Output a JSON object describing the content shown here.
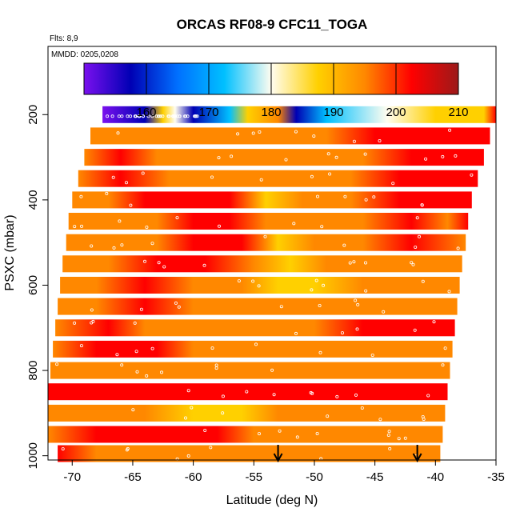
{
  "chart_data": {
    "type": "heatmap",
    "title": "ORCAS RF08-9 CFC11_TOGA",
    "flights_label": "Flts: 8,9",
    "dates_label": "MMDD: 0205,0208",
    "xlabel": "Latitude (deg N)",
    "ylabel": "PSXC (mbar)",
    "xlim": [
      -72,
      -35
    ],
    "ylim": [
      1010,
      40
    ],
    "x_ticks": [
      -70,
      -65,
      -60,
      -55,
      -50,
      -45,
      -40,
      -35
    ],
    "y_ticks": [
      200,
      400,
      600,
      800,
      1000
    ],
    "grid": false,
    "colorbar": {
      "position": "top-inset",
      "range": [
        150,
        210
      ],
      "ticks": [
        160,
        170,
        180,
        190,
        200,
        210
      ],
      "colors": [
        "#7a10ee",
        "#0000b4",
        "#0070ff",
        "#00c0ff",
        "#fffdf0",
        "#ffd000",
        "#ff8800",
        "#ff0000",
        "#9c1a1a"
      ]
    },
    "arrows_latitude": [
      -53,
      -41.5
    ],
    "rows": [
      {
        "p": 200,
        "lat_min": -67.5,
        "lat_max": -35,
        "stops": [
          [
            -67.5,
            153
          ],
          [
            -64,
            156
          ],
          [
            -62.5,
            184
          ],
          [
            -61.5,
            178
          ],
          [
            -60,
            154
          ],
          [
            -57,
            172
          ],
          [
            -55.5,
            187
          ],
          [
            -53,
            192
          ],
          [
            -51.5,
            157
          ],
          [
            -49,
            176
          ],
          [
            -44,
            181
          ],
          [
            -40,
            185
          ],
          [
            -37.3,
            188
          ],
          [
            -36,
            184
          ],
          [
            -35,
            204
          ]
        ]
      },
      {
        "p": 250,
        "lat_min": -68.5,
        "lat_max": -35.5,
        "stops": [
          [
            -68.5,
            198
          ],
          [
            -63,
            195
          ],
          [
            -59,
            196
          ],
          [
            -56,
            194
          ],
          [
            -53,
            193
          ],
          [
            -49,
            197
          ],
          [
            -45,
            201
          ],
          [
            -41,
            206
          ],
          [
            -38,
            204
          ],
          [
            -35.5,
            202
          ]
        ]
      },
      {
        "p": 300,
        "lat_min": -69,
        "lat_max": -36,
        "stops": [
          [
            -69,
            196
          ],
          [
            -66,
            199
          ],
          [
            -63,
            194
          ],
          [
            -60,
            198
          ],
          [
            -56,
            196
          ],
          [
            -53,
            193
          ],
          [
            -49,
            192
          ],
          [
            -46,
            197
          ],
          [
            -42,
            203
          ],
          [
            -39,
            200
          ],
          [
            -36,
            201
          ]
        ]
      },
      {
        "p": 350,
        "lat_min": -69.5,
        "lat_max": -36.5,
        "stops": [
          [
            -69.5,
            194
          ],
          [
            -66,
            199
          ],
          [
            -62,
            198
          ],
          [
            -58,
            196
          ],
          [
            -55,
            195
          ],
          [
            -51,
            193
          ],
          [
            -47,
            196
          ],
          [
            -43,
            201
          ],
          [
            -40,
            203
          ],
          [
            -36.5,
            199
          ]
        ]
      },
      {
        "p": 400,
        "lat_min": -70,
        "lat_max": -37,
        "stops": [
          [
            -70,
            193
          ],
          [
            -67,
            197
          ],
          [
            -64,
            205
          ],
          [
            -60,
            201
          ],
          [
            -57,
            203
          ],
          [
            -54,
            191
          ],
          [
            -51,
            194
          ],
          [
            -47,
            198
          ],
          [
            -43,
            204
          ],
          [
            -40,
            205
          ],
          [
            -37,
            200
          ]
        ]
      },
      {
        "p": 450,
        "lat_min": -70.3,
        "lat_max": -37.3,
        "stops": [
          [
            -70.3,
            194
          ],
          [
            -67,
            195
          ],
          [
            -63,
            198
          ],
          [
            -60,
            200
          ],
          [
            -57,
            201
          ],
          [
            -54,
            193
          ],
          [
            -50,
            195
          ],
          [
            -46,
            197
          ],
          [
            -42,
            201
          ],
          [
            -39,
            198
          ],
          [
            -37.3,
            199
          ]
        ]
      },
      {
        "p": 500,
        "lat_min": -70.5,
        "lat_max": -37.5,
        "stops": [
          [
            -70.5,
            193
          ],
          [
            -67,
            196
          ],
          [
            -63,
            197
          ],
          [
            -60,
            201
          ],
          [
            -56,
            199
          ],
          [
            -53,
            191
          ],
          [
            -50,
            194
          ],
          [
            -46,
            197
          ],
          [
            -42,
            199
          ],
          [
            -37.5,
            198
          ]
        ]
      },
      {
        "p": 550,
        "lat_min": -70.8,
        "lat_max": -37.8,
        "stops": [
          [
            -70.8,
            195
          ],
          [
            -67,
            197
          ],
          [
            -63,
            199
          ],
          [
            -59,
            200
          ],
          [
            -55,
            194
          ],
          [
            -52,
            191
          ],
          [
            -49,
            193
          ],
          [
            -45,
            195
          ],
          [
            -42,
            198
          ],
          [
            -37.8,
            196
          ]
        ]
      },
      {
        "p": 600,
        "lat_min": -71,
        "lat_max": -38,
        "stops": [
          [
            -71,
            194
          ],
          [
            -68,
            196
          ],
          [
            -64,
            201
          ],
          [
            -60,
            198
          ],
          [
            -56,
            196
          ],
          [
            -53,
            188
          ],
          [
            -50,
            190
          ],
          [
            -46,
            194
          ],
          [
            -43,
            197
          ],
          [
            -40,
            195
          ],
          [
            -38,
            196
          ]
        ]
      },
      {
        "p": 650,
        "lat_min": -71.2,
        "lat_max": -38.2,
        "stops": [
          [
            -71.2,
            195
          ],
          [
            -68,
            197
          ],
          [
            -64,
            199
          ],
          [
            -60,
            196
          ],
          [
            -56,
            194
          ],
          [
            -53,
            192
          ],
          [
            -50,
            195
          ],
          [
            -46,
            196
          ],
          [
            -42,
            197
          ],
          [
            -38.2,
            195
          ]
        ]
      },
      {
        "p": 700,
        "lat_min": -71.4,
        "lat_max": -38.4,
        "stops": [
          [
            -71.4,
            196
          ],
          [
            -67,
            199
          ],
          [
            -64,
            197
          ],
          [
            -61,
            195
          ],
          [
            -57,
            193
          ],
          [
            -53,
            194
          ],
          [
            -50,
            196
          ],
          [
            -46,
            199
          ],
          [
            -42,
            201
          ],
          [
            -40,
            205
          ],
          [
            -38.4,
            200
          ]
        ]
      },
      {
        "p": 750,
        "lat_min": -71.6,
        "lat_max": -38.6,
        "stops": [
          [
            -71.6,
            197
          ],
          [
            -68,
            199
          ],
          [
            -63,
            200
          ],
          [
            -60,
            196
          ],
          [
            -57,
            194
          ],
          [
            -54,
            193
          ],
          [
            -50,
            196
          ],
          [
            -47,
            195
          ],
          [
            -43,
            198
          ],
          [
            -38.6,
            197
          ]
        ]
      },
      {
        "p": 800,
        "lat_min": -71.8,
        "lat_max": -38.8,
        "stops": [
          [
            -71.8,
            198
          ],
          [
            -68,
            196
          ],
          [
            -64,
            194
          ],
          [
            -60,
            195
          ],
          [
            -56,
            196
          ],
          [
            -52,
            197
          ],
          [
            -49,
            196
          ],
          [
            -46,
            195
          ],
          [
            -42,
            197
          ],
          [
            -38.8,
            196
          ]
        ]
      },
      {
        "p": 850,
        "lat_min": -72,
        "lat_max": -39,
        "stops": [
          [
            -72,
            199
          ],
          [
            -68,
            204
          ],
          [
            -65,
            203
          ],
          [
            -61,
            201
          ],
          [
            -57,
            202
          ],
          [
            -53,
            203
          ],
          [
            -49,
            203
          ],
          [
            -45,
            204
          ],
          [
            -42,
            203
          ],
          [
            -39,
            199
          ]
        ]
      },
      {
        "p": 900,
        "lat_min": -72,
        "lat_max": -39.2,
        "stops": [
          [
            -72,
            196
          ],
          [
            -68,
            194
          ],
          [
            -64,
            193
          ],
          [
            -60,
            191
          ],
          [
            -56,
            190
          ],
          [
            -53,
            192
          ],
          [
            -50,
            195
          ],
          [
            -46,
            194
          ],
          [
            -43,
            194
          ],
          [
            -39.2,
            193
          ]
        ]
      },
      {
        "p": 950,
        "lat_min": -72,
        "lat_max": -39.4,
        "stops": [
          [
            -72,
            197
          ],
          [
            -68,
            201
          ],
          [
            -64,
            203
          ],
          [
            -61,
            199
          ],
          [
            -58,
            199
          ],
          [
            -55,
            196
          ],
          [
            -51,
            197
          ],
          [
            -47,
            195
          ],
          [
            -44,
            196
          ],
          [
            -39.4,
            195
          ]
        ]
      },
      {
        "p": 995,
        "lat_min": -71.2,
        "lat_max": -39.6,
        "stops": [
          [
            -71.2,
            199
          ],
          [
            -68,
            197
          ],
          [
            -64,
            196
          ],
          [
            -60,
            197
          ],
          [
            -57,
            198
          ],
          [
            -53,
            193
          ],
          [
            -50,
            194
          ],
          [
            -46,
            196
          ],
          [
            -42,
            196
          ],
          [
            -39.6,
            195
          ]
        ]
      }
    ]
  }
}
